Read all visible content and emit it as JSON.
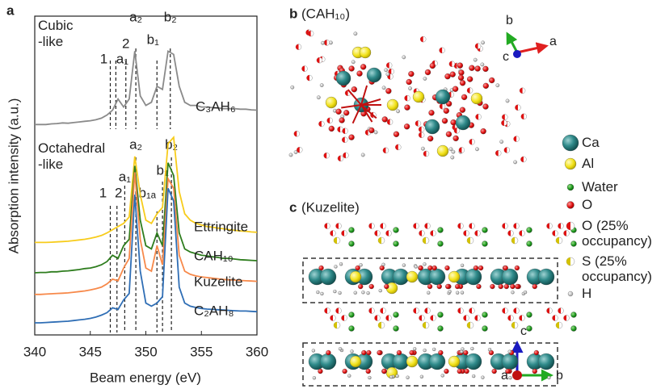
{
  "chart_data": {
    "type": "line",
    "panel_label": "a",
    "x_label": "Beam energy (eV)",
    "y_label": "Absorption intensity (a.u.)",
    "xlim": [
      340,
      360
    ],
    "xticks": [
      340,
      345,
      350,
      355,
      360
    ],
    "ylim": [
      0,
      100
    ],
    "x": [
      340,
      340.5,
      341,
      341.5,
      342,
      342.5,
      343,
      343.5,
      344,
      344.5,
      345,
      345.5,
      346,
      346.5,
      347,
      347.5,
      348,
      348.5,
      349,
      349.5,
      350,
      350.5,
      351,
      351.5,
      352,
      352.5,
      353,
      353.5,
      354,
      354.5,
      355,
      355.5,
      356,
      356.5,
      357,
      357.5,
      358,
      358.5,
      359,
      359.5,
      360
    ],
    "series": [
      {
        "name": "C₃AH₆",
        "color": "#8a8a8a",
        "values": [
          66,
          66,
          66,
          66.2,
          66.3,
          66.5,
          66.4,
          66.6,
          66.8,
          67,
          67.2,
          67.5,
          68,
          69,
          70.5,
          74,
          71.5,
          74,
          89,
          75,
          72,
          73,
          78,
          77,
          89,
          88,
          78,
          73,
          72,
          72,
          71.5,
          71.5,
          71.3,
          71.2,
          71,
          71,
          71,
          70.8,
          70.8,
          70.6,
          70.5
        ]
      },
      {
        "name": "Ettringite",
        "color": "#f7cc1c",
        "values": [
          29,
          29,
          29,
          29.1,
          29.2,
          29.3,
          29.4,
          29.6,
          29.8,
          30,
          30.3,
          30.7,
          31.2,
          32,
          33,
          34,
          35,
          37,
          56,
          44,
          36,
          35,
          38,
          40,
          60,
          62,
          45,
          38,
          36,
          35,
          34.5,
          34,
          33.8,
          33.5,
          33.3,
          33,
          32.8,
          32.6,
          32.5,
          32.3,
          32.2
        ]
      },
      {
        "name": "CAH₁₀",
        "color": "#2e7d1e",
        "values": [
          19.5,
          19.6,
          19.6,
          19.8,
          19.8,
          20,
          20.1,
          20.3,
          20.5,
          20.8,
          21,
          21.4,
          22,
          23,
          25,
          24,
          28,
          30,
          53,
          36,
          28,
          27,
          32,
          28,
          54,
          50,
          32,
          27,
          26,
          25.5,
          25,
          24.8,
          24.5,
          24.3,
          24,
          24,
          23.8,
          23.6,
          23.5,
          23.4,
          23.3
        ]
      },
      {
        "name": "Kuzelite",
        "color": "#f7894a",
        "values": [
          12.7,
          12.7,
          12.8,
          12.9,
          13,
          13.1,
          13.2,
          13.4,
          13.6,
          13.8,
          14.1,
          14.5,
          15,
          16,
          17.5,
          17,
          21,
          24,
          51,
          30,
          21,
          20,
          28,
          22,
          49,
          46,
          25,
          20,
          19,
          18.5,
          18.2,
          18,
          17.8,
          17.6,
          17.4,
          17.3,
          17.2,
          17.1,
          17,
          16.9,
          16.8
        ]
      },
      {
        "name": "C₂AH₈",
        "color": "#2f6eb5",
        "values": [
          3.8,
          3.8,
          3.9,
          4,
          4.1,
          4.2,
          4.3,
          4.5,
          4.7,
          4.9,
          5.2,
          5.6,
          6.2,
          7,
          8.5,
          8,
          11,
          13,
          44,
          20,
          10,
          9,
          10,
          12,
          46,
          42,
          15,
          10,
          9,
          8.6,
          8.3,
          8.1,
          8,
          7.9,
          7.8,
          7.7,
          7.6,
          7.5,
          7.5,
          7.4,
          7.3
        ]
      }
    ],
    "annotations": [
      "Cubic -like",
      "Octahedral -like"
    ],
    "markers": [
      {
        "x": 346.8,
        "label": "1"
      },
      {
        "x": 347.3,
        "label": "a₁"
      },
      {
        "x": 348.2,
        "label": "2"
      },
      {
        "x": 349.1,
        "label": "a₂"
      },
      {
        "x": 351.0,
        "label": "b₁"
      },
      {
        "x": 352.2,
        "label": "b₂"
      },
      {
        "x": 346.8,
        "label": "1"
      },
      {
        "x": 347.4,
        "label": "2"
      },
      {
        "x": 348.1,
        "label": "a₁"
      },
      {
        "x": 349.1,
        "label": "a₂"
      },
      {
        "x": 351.0,
        "label": "b₁ₐ"
      },
      {
        "x": 351.5,
        "label": "b₁"
      },
      {
        "x": 352.3,
        "label": "b₂"
      }
    ]
  },
  "panels": [
    {
      "label": "b",
      "title": "(CAH₁₀)",
      "axes": [
        "b",
        "a",
        "c"
      ]
    },
    {
      "label": "c",
      "title": "(Kuzelite)",
      "axes": [
        "c",
        "a",
        "b"
      ]
    }
  ],
  "legend": [
    "Ca",
    "Al",
    "Water",
    "O",
    "O (25% occupancy)",
    "S (25% occupancy)",
    "H"
  ]
}
